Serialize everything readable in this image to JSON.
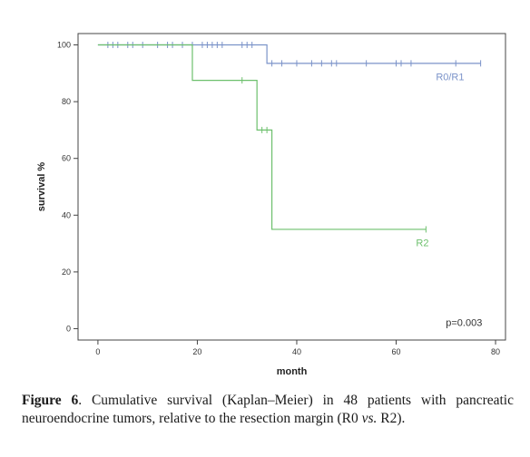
{
  "chart_data": {
    "type": "line",
    "subtype": "kaplan-meier step",
    "xlabel": "month",
    "ylabel": "survival %",
    "xlim": [
      -4,
      82
    ],
    "ylim": [
      -4,
      104
    ],
    "xticks": [
      0,
      20,
      40,
      60,
      80
    ],
    "yticks": [
      0,
      20,
      40,
      60,
      80,
      100
    ],
    "grid": false,
    "series": [
      {
        "name": "R0/R1",
        "color": "#7b93c9",
        "steps": [
          [
            0,
            100
          ],
          [
            34,
            100
          ],
          [
            34,
            93.5
          ],
          [
            77,
            93.5
          ]
        ],
        "censored": [
          [
            2,
            100
          ],
          [
            3,
            100
          ],
          [
            4,
            100
          ],
          [
            6,
            100
          ],
          [
            7,
            100
          ],
          [
            9,
            100
          ],
          [
            12,
            100
          ],
          [
            14,
            100
          ],
          [
            15,
            100
          ],
          [
            17,
            100
          ],
          [
            19,
            100
          ],
          [
            21,
            100
          ],
          [
            22,
            100
          ],
          [
            23,
            100
          ],
          [
            24,
            100
          ],
          [
            25,
            100
          ],
          [
            29,
            100
          ],
          [
            30,
            100
          ],
          [
            31,
            100
          ],
          [
            35,
            93.5
          ],
          [
            37,
            93.5
          ],
          [
            40,
            93.5
          ],
          [
            43,
            93.5
          ],
          [
            45,
            93.5
          ],
          [
            47,
            93.5
          ],
          [
            48,
            93.5
          ],
          [
            54,
            93.5
          ],
          [
            60,
            93.5
          ],
          [
            61,
            93.5
          ],
          [
            63,
            93.5
          ],
          [
            72,
            93.5
          ],
          [
            77,
            93.5
          ]
        ]
      },
      {
        "name": "R2",
        "color": "#6dc06d",
        "steps": [
          [
            0,
            100
          ],
          [
            19,
            100
          ],
          [
            19,
            87.5
          ],
          [
            32,
            87.5
          ],
          [
            32,
            70
          ],
          [
            35,
            70
          ],
          [
            35,
            35
          ],
          [
            66,
            35
          ]
        ],
        "censored": [
          [
            29,
            87.5
          ],
          [
            33,
            70
          ],
          [
            34,
            70
          ],
          [
            66,
            35
          ]
        ]
      }
    ],
    "annotations": [
      {
        "text": "p=0.003"
      }
    ]
  },
  "caption": {
    "label": "Figure 6",
    "text_main": ". Cumulative survival (Kaplan–Meier) in 48 patients with pancreatic neuroendocrine tumors, relative to the resection margin (R0 ",
    "text_vs": "vs.",
    "text_end": " R2)."
  }
}
